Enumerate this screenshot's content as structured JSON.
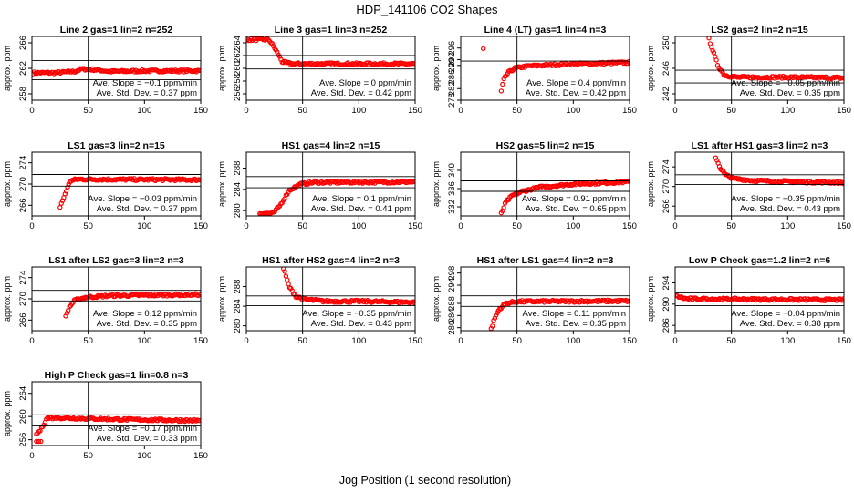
{
  "figure": {
    "title": "HDP_141106  CO2 Shapes",
    "xlabel": "Jog Position (1 second resolution)",
    "marker_color": "#ff0000"
  },
  "chart_data": [
    {
      "type": "scatter",
      "title": "Line 2 gas=1 lin=2 n=252",
      "ylabel": "approx. ppm",
      "xlim": [
        0,
        150
      ],
      "ylim": [
        257,
        267
      ],
      "xticks": [
        0,
        50,
        100,
        150
      ],
      "yticks": [
        258,
        262,
        266
      ],
      "hlines": [
        263.2,
        260.2
      ],
      "vline": 50,
      "slope_text": "Ave. Slope = −0.1 ppm/min",
      "sd_text": "Ave. Std. Dev. = 0.37 ppm",
      "segments": [
        {
          "x": [
            1,
            150
          ],
          "y": [
            [
              1,
              261.3
            ],
            [
              20,
              261.3
            ],
            [
              38,
              261.5
            ],
            [
              44,
              261.9
            ],
            [
              55,
              261.8
            ],
            [
              70,
              261.5
            ],
            [
              100,
              261.6
            ],
            [
              150,
              261.6
            ]
          ]
        }
      ]
    },
    {
      "type": "scatter",
      "title": "Line 3 gas=1 lin=3 n=252",
      "ylabel": "approx. ppm",
      "xlim": [
        0,
        150
      ],
      "ylim": [
        255,
        265
      ],
      "xticks": [
        0,
        50,
        100,
        150
      ],
      "yticks": [
        256,
        258,
        260,
        262,
        264
      ],
      "hlines": [
        262.0,
        259.9
      ],
      "vline": 50,
      "slope_text": "Ave. Slope = 0 ppm/min",
      "sd_text": "Ave. Std. Dev. = 0.42 ppm",
      "segments": [
        {
          "x": [
            1,
            150
          ],
          "y": [
            [
              1,
              264.5
            ],
            [
              20,
              264.5
            ],
            [
              24,
              263.5
            ],
            [
              28,
              262.3
            ],
            [
              32,
              261.0
            ],
            [
              40,
              260.7
            ],
            [
              150,
              260.7
            ]
          ]
        }
      ]
    },
    {
      "type": "scatter",
      "title": "Line 4 (LT) gas=1 lin=4 n=3",
      "ylabel": "approx. ppm",
      "xlim": [
        0,
        150
      ],
      "ylim": [
        278,
        300
      ],
      "xticks": [
        0,
        50,
        100,
        150
      ],
      "yticks": [
        278,
        282,
        286,
        290,
        292,
        296
      ],
      "hlines": [
        291.5,
        289.5
      ],
      "vline": 50,
      "slope_text": "Ave. Slope = 0.4 ppm/min",
      "sd_text": "Ave. Std. Dev. = 0.42 ppm",
      "points": [
        [
          20,
          295.8
        ]
      ],
      "segments": [
        {
          "x": [
            36,
            150
          ],
          "y": [
            [
              36,
              281
            ],
            [
              38,
              285
            ],
            [
              42,
              287.5
            ],
            [
              48,
              289
            ],
            [
              60,
              289.8
            ],
            [
              100,
              290.5
            ],
            [
              150,
              291.0
            ]
          ]
        }
      ]
    },
    {
      "type": "scatter",
      "title": "LS2 gas=2 lin=2 n=15",
      "ylabel": "approx. ppm",
      "xlim": [
        0,
        150
      ],
      "ylim": [
        241,
        251
      ],
      "xticks": [
        0,
        50,
        100,
        150
      ],
      "yticks": [
        242,
        246,
        250
      ],
      "hlines": [
        245.7,
        243.7
      ],
      "vline": 50,
      "slope_text": "Ave. Slope = −0.05 ppm/min",
      "sd_text": "Ave. Std. Dev. = 0.35 ppm",
      "segments": [
        {
          "x": [
            30,
            150
          ],
          "y": [
            [
              30,
              250.6
            ],
            [
              34,
              248.5
            ],
            [
              38,
              246.4
            ],
            [
              44,
              244.9
            ],
            [
              55,
              244.6
            ],
            [
              100,
              244.6
            ],
            [
              150,
              244.5
            ]
          ]
        }
      ]
    },
    {
      "type": "scatter",
      "title": "LS1 gas=3 lin=2 n=15",
      "ylabel": "approx. ppm",
      "xlim": [
        0,
        150
      ],
      "ylim": [
        264,
        276
      ],
      "xticks": [
        0,
        50,
        100,
        150
      ],
      "yticks": [
        266,
        270,
        274
      ],
      "hlines": [
        271.8,
        269.6
      ],
      "vline": 50,
      "slope_text": "Ave. Slope = −0.03 ppm/min",
      "sd_text": "Ave. Std. Dev. = 0.37 ppm",
      "segments": [
        {
          "x": [
            25,
            150
          ],
          "y": [
            [
              25,
              265.6
            ],
            [
              30,
              268.5
            ],
            [
              34,
              270.6
            ],
            [
              40,
              270.9
            ],
            [
              150,
              270.8
            ]
          ]
        }
      ]
    },
    {
      "type": "scatter",
      "title": "HS1 gas=4 lin=2 n=15",
      "ylabel": "approx. ppm",
      "xlim": [
        0,
        150
      ],
      "ylim": [
        279,
        291
      ],
      "xticks": [
        0,
        50,
        100,
        150
      ],
      "yticks": [
        280,
        284,
        288
      ],
      "hlines": [
        286.4,
        284.3
      ],
      "vline": 50,
      "slope_text": "Ave. Slope = 0.1 ppm/min",
      "sd_text": "Ave. Std. Dev. = 0.41 ppm",
      "segments": [
        {
          "x": [
            12,
            150
          ],
          "y": [
            [
              12,
              279.5
            ],
            [
              24,
              279.5
            ],
            [
              30,
              281.0
            ],
            [
              38,
              283.8
            ],
            [
              48,
              285.0
            ],
            [
              60,
              285.3
            ],
            [
              150,
              285.4
            ]
          ]
        }
      ]
    },
    {
      "type": "scatter",
      "title": "HS2 gas=5 lin=2 n=15",
      "ylabel": "approx. ppm",
      "xlim": [
        0,
        150
      ],
      "ylim": [
        330,
        344
      ],
      "xticks": [
        0,
        50,
        100,
        150
      ],
      "yticks": [
        332,
        336,
        340
      ],
      "hlines": [
        337.7,
        335.4
      ],
      "vline": 50,
      "slope_text": "Ave. Slope = 0.91 ppm/min",
      "sd_text": "Ave. Std. Dev. = 0.65 ppm",
      "segments": [
        {
          "x": [
            36,
            150
          ],
          "y": [
            [
              36,
              330.5
            ],
            [
              40,
              333.0
            ],
            [
              46,
              334.5
            ],
            [
              55,
              335.4
            ],
            [
              70,
              336.3
            ],
            [
              100,
              337.0
            ],
            [
              150,
              337.5
            ]
          ]
        }
      ]
    },
    {
      "type": "scatter",
      "title": "LS1 after HS1 gas=3 lin=2 n=3",
      "ylabel": "approx. ppm",
      "xlim": [
        0,
        150
      ],
      "ylim": [
        264,
        277
      ],
      "xticks": [
        0,
        50,
        100,
        150
      ],
      "yticks": [
        266,
        270,
        274
      ],
      "hlines": [
        272.4,
        270.4
      ],
      "vline": 50,
      "slope_text": "Ave. Slope = −0.35 ppm/min",
      "sd_text": "Ave. Std. Dev. = 0.43 ppm",
      "segments": [
        {
          "x": [
            36,
            150
          ],
          "y": [
            [
              36,
              276.0
            ],
            [
              40,
              273.8
            ],
            [
              45,
              272.3
            ],
            [
              52,
              271.6
            ],
            [
              70,
              271.2
            ],
            [
              100,
              271.0
            ],
            [
              150,
              270.8
            ]
          ]
        }
      ]
    },
    {
      "type": "scatter",
      "title": "LS1 after LS2 gas=3 lin=2 n=3",
      "ylabel": "approx. ppm",
      "xlim": [
        0,
        150
      ],
      "ylim": [
        264,
        276
      ],
      "xticks": [
        0,
        50,
        100,
        150
      ],
      "yticks": [
        266,
        270,
        274
      ],
      "hlines": [
        271.6,
        269.6
      ],
      "vline": 50,
      "slope_text": "Ave. Slope = 0.12 ppm/min",
      "sd_text": "Ave. Std. Dev. = 0.35 ppm",
      "segments": [
        {
          "x": [
            30,
            150
          ],
          "y": [
            [
              30,
              266.6
            ],
            [
              33,
              268.4
            ],
            [
              38,
              269.7
            ],
            [
              48,
              270.3
            ],
            [
              70,
              270.6
            ],
            [
              150,
              270.8
            ]
          ]
        }
      ]
    },
    {
      "type": "scatter",
      "title": "HS1 after HS2 gas=4 lin=2 n=3",
      "ylabel": "approx. ppm",
      "xlim": [
        0,
        150
      ],
      "ylim": [
        279,
        292
      ],
      "xticks": [
        0,
        50,
        100,
        150
      ],
      "yticks": [
        280,
        284,
        288
      ],
      "hlines": [
        286.1,
        284.1
      ],
      "vline": 50,
      "slope_text": "Ave. Slope = −0.35 ppm/min",
      "sd_text": "Ave. Std. Dev. = 0.43 ppm",
      "segments": [
        {
          "x": [
            33,
            150
          ],
          "y": [
            [
              33,
              291.7
            ],
            [
              38,
              288.0
            ],
            [
              44,
              286.0
            ],
            [
              52,
              285.4
            ],
            [
              70,
              285.0
            ],
            [
              100,
              285.0
            ],
            [
              150,
              284.8
            ]
          ]
        }
      ]
    },
    {
      "type": "scatter",
      "title": "HS1 after LS1 gas=4 lin=2 n=3",
      "ylabel": "approx. ppm",
      "xlim": [
        0,
        150
      ],
      "ylim": [
        279,
        300
      ],
      "xticks": [
        0,
        50,
        100,
        150
      ],
      "yticks": [
        280,
        284,
        288,
        294,
        298
      ],
      "hlines": [
        290.5,
        287.0
      ],
      "vline": 50,
      "slope_text": "Ave. Slope = 0.11 ppm/min",
      "sd_text": "Ave. Std. Dev. = 0.35 ppm",
      "segments": [
        {
          "x": [
            27,
            150
          ],
          "y": [
            [
              27,
              279.5
            ],
            [
              30,
              283.0
            ],
            [
              34,
              286.0
            ],
            [
              40,
              288.0
            ],
            [
              50,
              288.6
            ],
            [
              150,
              288.8
            ]
          ]
        }
      ]
    },
    {
      "type": "scatter",
      "title": "Low P Check gas=1.2 lin=2 n=6",
      "ylabel": "approx. ppm",
      "xlim": [
        0,
        150
      ],
      "ylim": [
        285,
        297
      ],
      "xticks": [
        0,
        50,
        100,
        150
      ],
      "yticks": [
        286,
        290,
        294
      ],
      "hlines": [
        292.1,
        289.7
      ],
      "vline": 50,
      "slope_text": "Ave. Slope = −0.04 ppm/min",
      "sd_text": "Ave. Std. Dev. = 0.38 ppm",
      "segments": [
        {
          "x": [
            1,
            150
          ],
          "y": [
            [
              1,
              291.5
            ],
            [
              10,
              291.0
            ],
            [
              150,
              290.8
            ]
          ]
        }
      ]
    },
    {
      "type": "scatter",
      "title": "High P Check gas=1 lin=0.8 n=3",
      "ylabel": "approx. ppm",
      "xlim": [
        0,
        150
      ],
      "ylim": [
        255,
        266
      ],
      "xticks": [
        0,
        50,
        100,
        150
      ],
      "yticks": [
        256,
        260,
        264
      ],
      "hlines": [
        260.3,
        258.4
      ],
      "vline": 50,
      "slope_text": "Ave. Slope = −0.17 ppm/min",
      "sd_text": "Ave. Std. Dev. = 0.33 ppm",
      "points": [
        [
          4,
          255.7
        ],
        [
          6,
          255.7
        ],
        [
          8,
          255.7
        ]
      ],
      "segments": [
        {
          "x": [
            4,
            150
          ],
          "y": [
            [
              4,
              257.0
            ],
            [
              7,
              257.5
            ],
            [
              10,
              258.5
            ],
            [
              13,
              259.7
            ],
            [
              20,
              259.8
            ],
            [
              80,
              259.5
            ],
            [
              150,
              259.3
            ]
          ]
        }
      ]
    }
  ]
}
